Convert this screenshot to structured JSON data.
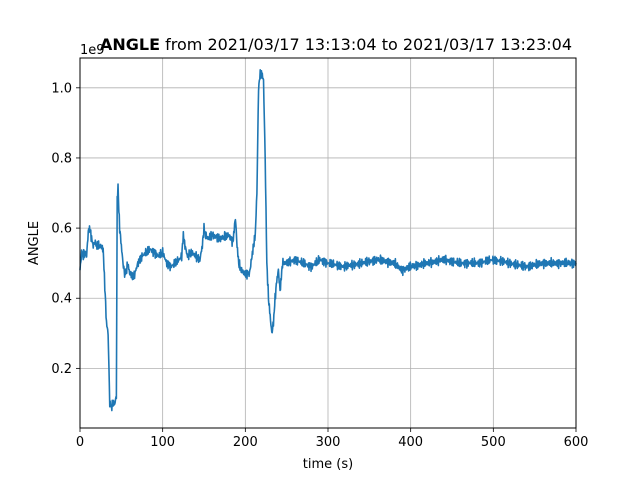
{
  "chart_data": {
    "type": "line",
    "title_bold": "ANGLE",
    "title_rest": " from 2021/03/17 13:13:04 to 2021/03/17 13:23:04",
    "xlabel": "time (s)",
    "ylabel": "ANGLE",
    "y_offset_label": "1e9",
    "xlim": [
      0,
      600
    ],
    "ylim": [
      0.03,
      1.085
    ],
    "x_ticks": [
      0,
      100,
      200,
      300,
      400,
      500,
      600
    ],
    "y_ticks": [
      0.2,
      0.4,
      0.6,
      0.8,
      1.0
    ],
    "x_tick_labels": [
      "0",
      "100",
      "200",
      "300",
      "400",
      "500",
      "600"
    ],
    "y_tick_labels": [
      "0.2",
      "0.4",
      "0.6",
      "0.8",
      "1.0"
    ],
    "grid": true,
    "colors": {
      "line": "#1f77b4",
      "grid": "#b0b0b0",
      "axes": "#000000"
    },
    "series": [
      {
        "x": [
          0,
          2,
          4,
          6,
          8,
          10,
          12,
          14,
          16,
          18,
          20,
          24,
          28,
          32,
          34,
          36,
          38,
          40,
          42,
          44,
          45,
          46,
          47,
          48,
          50,
          52,
          54,
          56,
          58,
          60,
          65,
          70,
          75,
          80,
          85,
          90,
          95,
          100,
          105,
          110,
          115,
          120,
          123,
          125,
          127,
          130,
          135,
          140,
          145,
          148,
          150,
          152,
          155,
          160,
          170,
          180,
          185,
          188,
          190,
          192,
          195,
          200,
          205,
          208,
          210,
          212,
          214,
          216,
          218,
          220,
          222,
          224,
          226,
          228,
          230,
          232,
          234,
          236,
          238,
          240,
          242,
          245,
          250,
          260,
          270,
          280,
          290,
          300,
          320,
          340,
          360,
          380,
          390,
          400,
          420,
          440,
          460,
          480,
          500,
          520,
          540,
          560,
          580,
          600
        ],
        "y": [
          0.48,
          0.53,
          0.52,
          0.53,
          0.52,
          0.59,
          0.6,
          0.57,
          0.55,
          0.56,
          0.55,
          0.55,
          0.54,
          0.33,
          0.3,
          0.1,
          0.09,
          0.1,
          0.1,
          0.12,
          0.68,
          0.72,
          0.65,
          0.6,
          0.55,
          0.5,
          0.47,
          0.48,
          0.5,
          0.47,
          0.46,
          0.5,
          0.52,
          0.53,
          0.54,
          0.53,
          0.52,
          0.53,
          0.5,
          0.49,
          0.5,
          0.51,
          0.52,
          0.58,
          0.55,
          0.52,
          0.53,
          0.52,
          0.51,
          0.55,
          0.6,
          0.58,
          0.57,
          0.58,
          0.57,
          0.58,
          0.56,
          0.63,
          0.55,
          0.5,
          0.48,
          0.47,
          0.47,
          0.52,
          0.55,
          0.58,
          0.7,
          1.0,
          1.04,
          1.04,
          1.02,
          0.8,
          0.5,
          0.4,
          0.35,
          0.3,
          0.33,
          0.4,
          0.45,
          0.48,
          0.42,
          0.5,
          0.5,
          0.51,
          0.5,
          0.49,
          0.51,
          0.5,
          0.49,
          0.5,
          0.51,
          0.5,
          0.48,
          0.49,
          0.5,
          0.51,
          0.5,
          0.5,
          0.51,
          0.5,
          0.49,
          0.5,
          0.5,
          0.5
        ]
      }
    ]
  }
}
